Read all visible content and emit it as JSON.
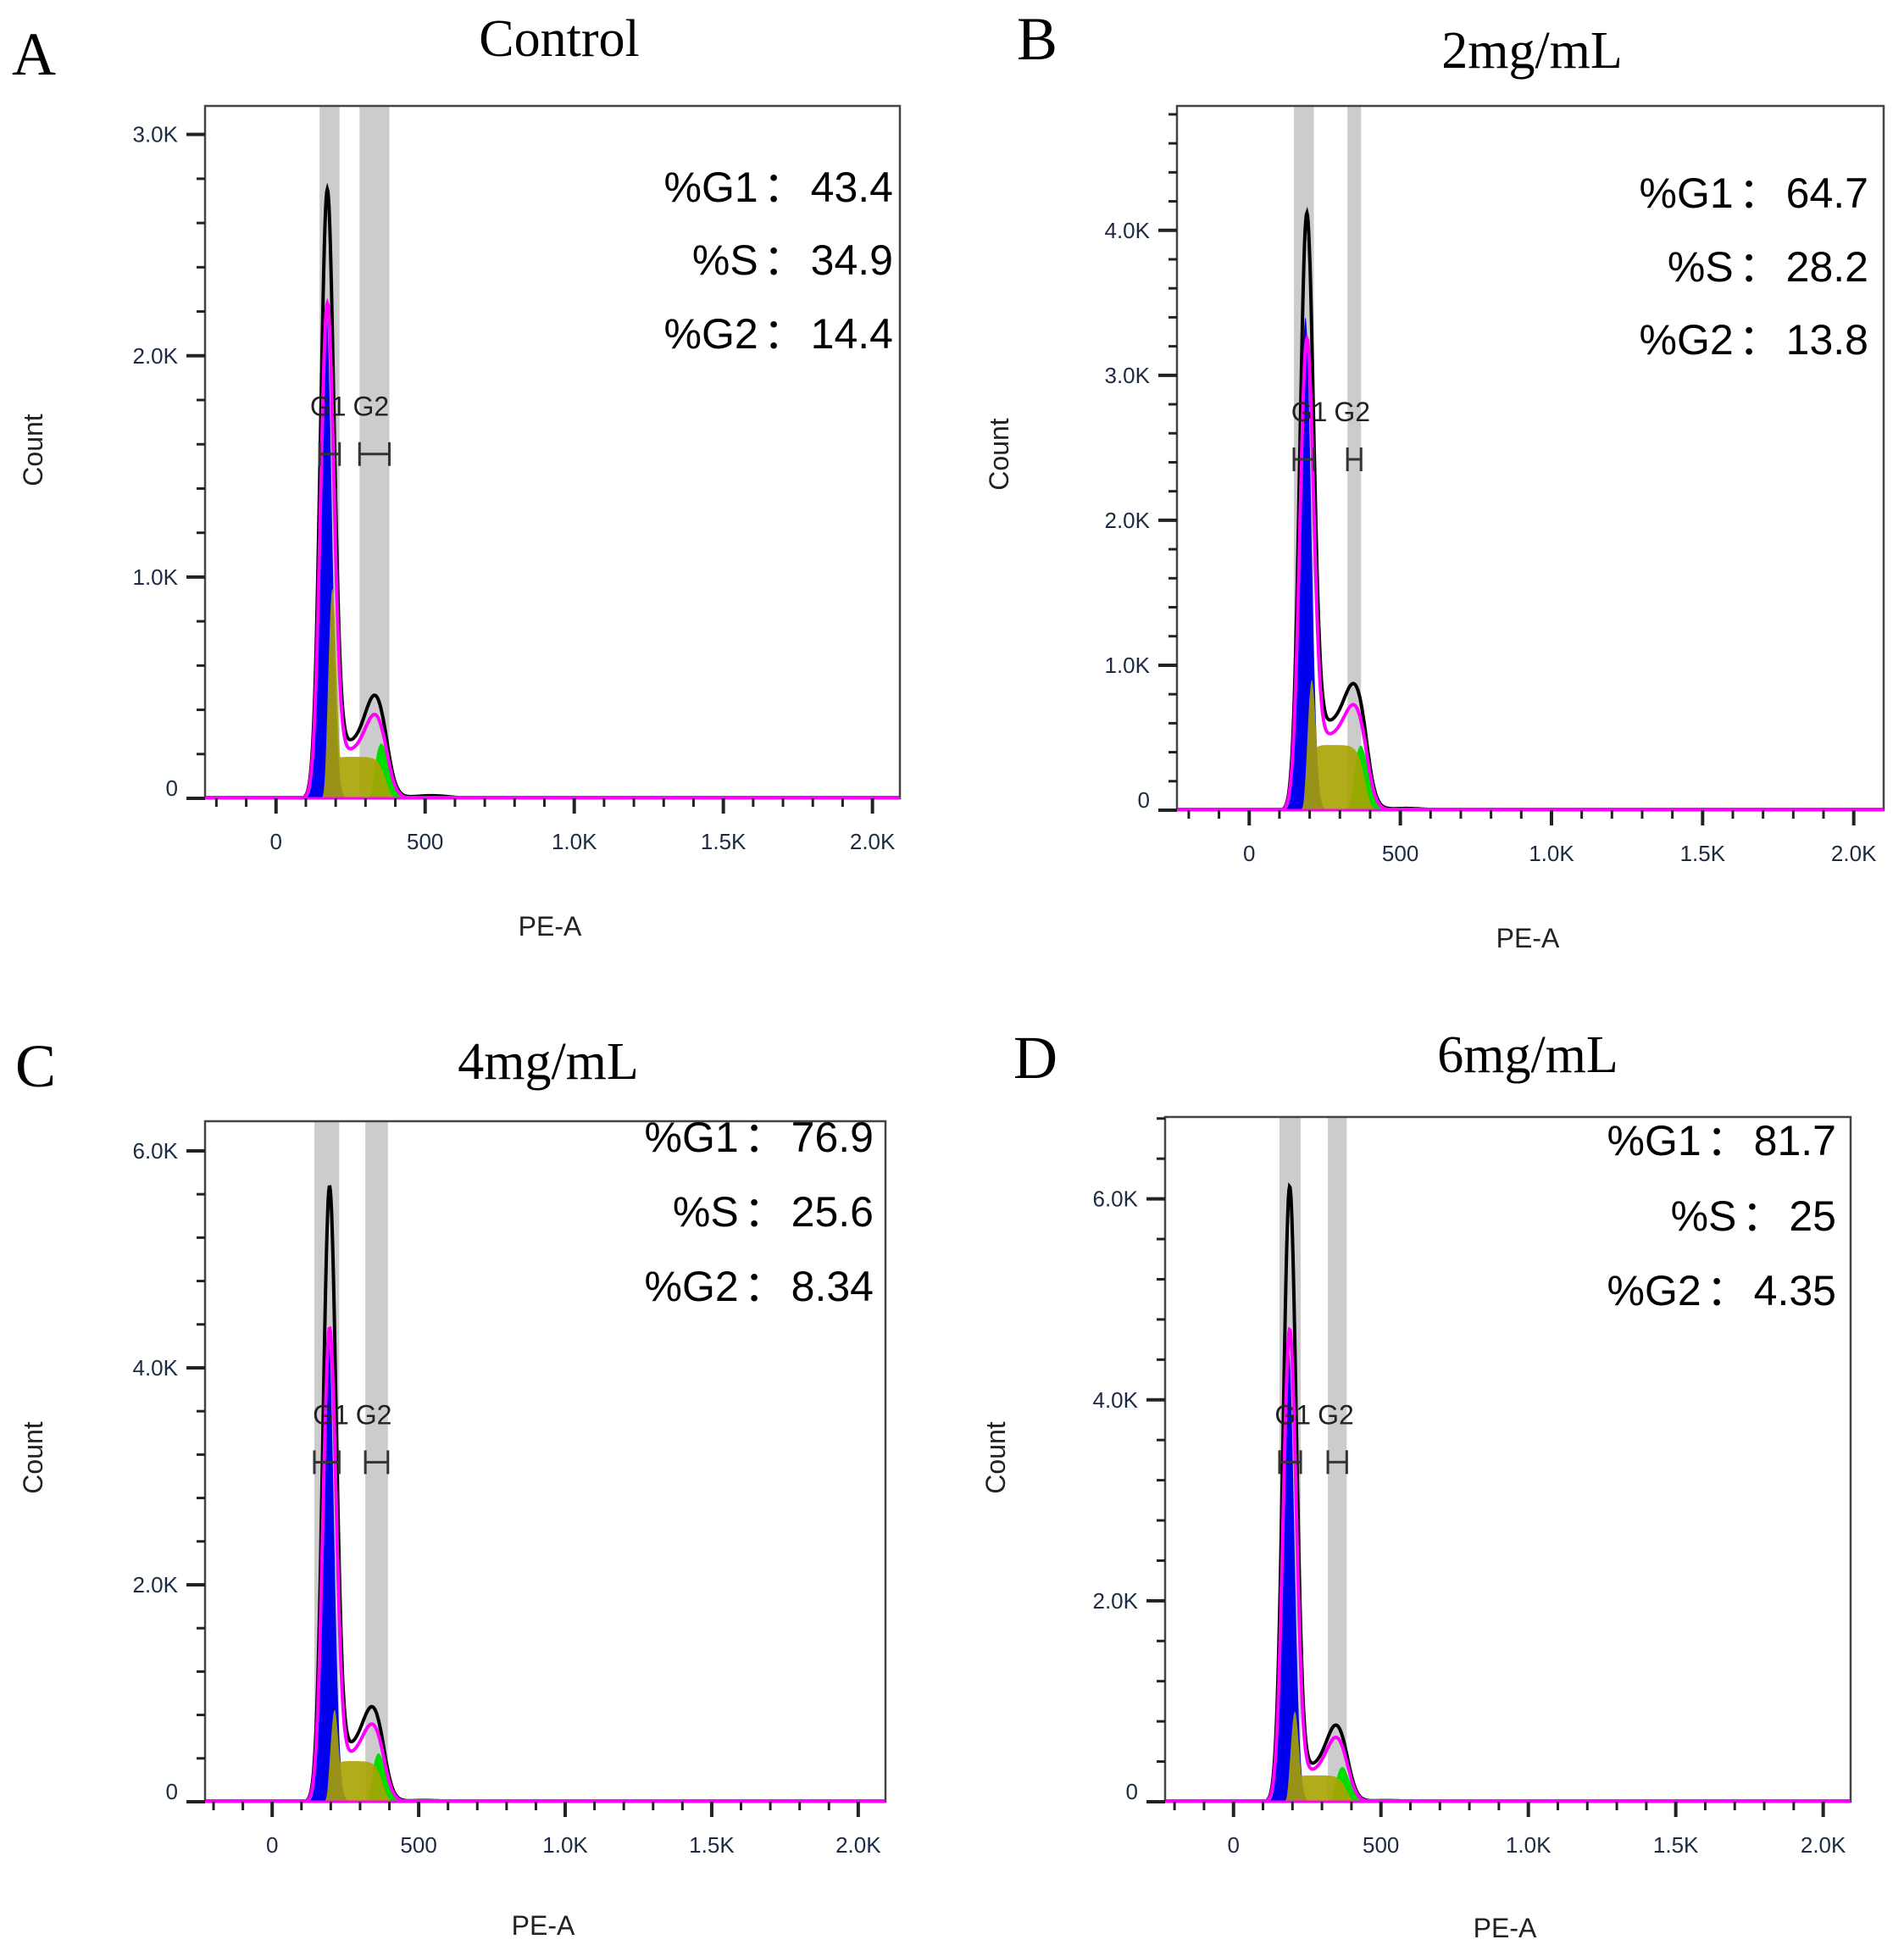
{
  "chart_data": [
    {
      "panel": "A",
      "title": "Control",
      "type": "histogram",
      "xlabel": "PE-A",
      "ylabel": "Count",
      "xlim": [
        -238,
        2092
      ],
      "ylim": [
        0,
        3129
      ],
      "xticks": [
        {
          "v": 0,
          "l": "0"
        },
        {
          "v": 500,
          "l": "500"
        },
        {
          "v": 1000,
          "l": "1.0K"
        },
        {
          "v": 1500,
          "l": "1.5K"
        },
        {
          "v": 2000,
          "l": "2.0K"
        }
      ],
      "yticks": [
        {
          "v": 0,
          "l": "0"
        },
        {
          "v": 1000,
          "l": "1.0K"
        },
        {
          "v": 2000,
          "l": "2.0K"
        },
        {
          "v": 3000,
          "l": "3.0K"
        }
      ],
      "gates": [
        {
          "name": "G1",
          "range": [
            146,
            213
          ],
          "marker_y": 1556
        },
        {
          "name": "G2",
          "range": [
            280,
            380
          ],
          "marker_y": 1556
        }
      ],
      "stats": [
        {
          "label": "%G1",
          "value": "43.4"
        },
        {
          "label": "%S",
          "value": "34.9"
        },
        {
          "label": "%G2",
          "value": "14.4"
        }
      ],
      "peaks": {
        "g1_x": 171,
        "g1_total": 2944,
        "g1_model": 2390,
        "g1_fit": 2200,
        "s_peak": 950,
        "s_level": 250,
        "g2_x": 334,
        "g2_total": 478,
        "g2_model": 370,
        "g2_fit": 250
      }
    },
    {
      "panel": "B",
      "title": "2mg/mL",
      "type": "histogram",
      "xlabel": "PE-A",
      "ylabel": "Count",
      "xlim": [
        -239,
        2099
      ],
      "ylim": [
        0,
        4858
      ],
      "xticks": [
        {
          "v": 0,
          "l": "0"
        },
        {
          "v": 500,
          "l": "500"
        },
        {
          "v": 1000,
          "l": "1.0K"
        },
        {
          "v": 1500,
          "l": "1.5K"
        },
        {
          "v": 2000,
          "l": "2.0K"
        }
      ],
      "yticks": [
        {
          "v": 0,
          "l": "0"
        },
        {
          "v": 1000,
          "l": "1.0K"
        },
        {
          "v": 2000,
          "l": "2.0K"
        },
        {
          "v": 3000,
          "l": "3.0K"
        },
        {
          "v": 4000,
          "l": "4.0K"
        }
      ],
      "gates": [
        {
          "name": "G1",
          "range": [
            148,
            214
          ],
          "marker_y": 2420
        },
        {
          "name": "G2",
          "range": [
            325,
            370
          ],
          "marker_y": 2420
        }
      ],
      "stats": [
        {
          "label": "%G1",
          "value": "64.7"
        },
        {
          "label": "%S",
          "value": "28.2"
        },
        {
          "label": "%G2",
          "value": "13.8"
        }
      ],
      "peaks": {
        "g1_x": 189,
        "g1_total": 4575,
        "g1_model": 3600,
        "g1_fit": 3400,
        "s_peak": 900,
        "s_level": 600,
        "g2_x": 350,
        "g2_total": 900,
        "g2_model": 720,
        "g2_fit": 450
      }
    },
    {
      "panel": "C",
      "title": "4mg/mL",
      "type": "histogram",
      "xlabel": "PE-A",
      "ylabel": "Count",
      "xlim": [
        -229,
        2093
      ],
      "ylim": [
        0,
        6273
      ],
      "xticks": [
        {
          "v": 0,
          "l": "0"
        },
        {
          "v": 500,
          "l": "500"
        },
        {
          "v": 1000,
          "l": "1.0K"
        },
        {
          "v": 1500,
          "l": "1.5K"
        },
        {
          "v": 2000,
          "l": "2.0K"
        }
      ],
      "yticks": [
        {
          "v": 0,
          "l": "0"
        },
        {
          "v": 2000,
          "l": "2.0K"
        },
        {
          "v": 4000,
          "l": "4.0K"
        },
        {
          "v": 6000,
          "l": "6.0K"
        }
      ],
      "gates": [
        {
          "name": "G1",
          "range": [
            144,
            229
          ],
          "marker_y": 3130
        },
        {
          "name": "G2",
          "range": [
            318,
            395
          ],
          "marker_y": 3130
        }
      ],
      "stats": [
        {
          "label": "%G1",
          "value": "76.9"
        },
        {
          "label": "%S",
          "value": "25.6"
        },
        {
          "label": "%G2",
          "value": "8.34"
        }
      ],
      "peaks": {
        "g1_x": 195,
        "g1_total": 6055,
        "g1_model": 4650,
        "g1_fit": 4300,
        "s_peak": 850,
        "s_level": 500,
        "g2_x": 344,
        "g2_total": 900,
        "g2_model": 700,
        "g2_fit": 450
      }
    },
    {
      "panel": "D",
      "title": "6mg/mL",
      "type": "histogram",
      "xlabel": "PE-A",
      "ylabel": "Count",
      "xlim": [
        -232,
        2093
      ],
      "ylim": [
        0,
        6815
      ],
      "xticks": [
        {
          "v": 0,
          "l": "0"
        },
        {
          "v": 500,
          "l": "500"
        },
        {
          "v": 1000,
          "l": "1.0K"
        },
        {
          "v": 1500,
          "l": "1.5K"
        },
        {
          "v": 2000,
          "l": "2.0K"
        }
      ],
      "yticks": [
        {
          "v": 0,
          "l": "0"
        },
        {
          "v": 2000,
          "l": "2.0K"
        },
        {
          "v": 4000,
          "l": "4.0K"
        },
        {
          "v": 6000,
          "l": "6.0K"
        }
      ],
      "gates": [
        {
          "name": "G1",
          "range": [
            156,
            228
          ],
          "marker_y": 3380
        },
        {
          "name": "G2",
          "range": [
            320,
            384
          ],
          "marker_y": 3380
        }
      ],
      "stats": [
        {
          "label": "%G1",
          "value": "81.7"
        },
        {
          "label": "%S",
          "value": "25"
        },
        {
          "label": "%G2",
          "value": "4.35"
        }
      ],
      "peaks": {
        "g1_x": 190,
        "g1_total": 6394,
        "g1_model": 4900,
        "g1_fit": 4500,
        "s_peak": 900,
        "s_level": 350,
        "g2_x": 350,
        "g2_total": 780,
        "g2_model": 650,
        "g2_fit": 350
      }
    }
  ],
  "colors": {
    "total": "#000000",
    "model": "#ff00ff",
    "g1_fit": "#0000ee",
    "s_fit": "#a8a300",
    "g2_fit": "#00dd00",
    "gate": "#cccccc",
    "tick_label": "#1c2a44"
  },
  "stat_separator": "："
}
